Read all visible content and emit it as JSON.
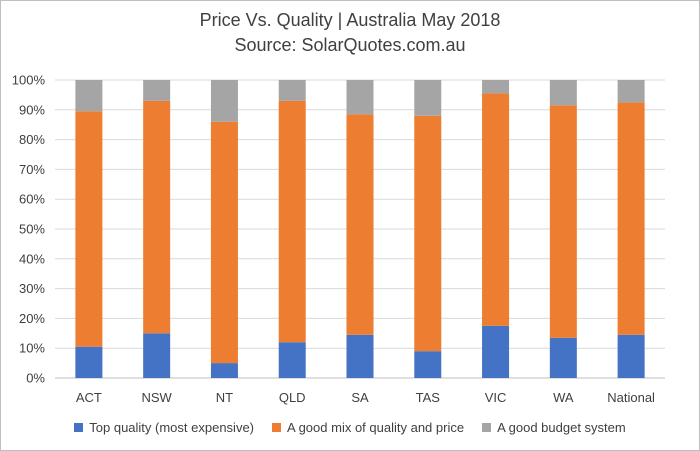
{
  "chart_data": {
    "type": "bar",
    "stacked": true,
    "title": "Price Vs. Quality | Australia May 2018",
    "subtitle": "Source: SolarQuotes.com.au",
    "categories": [
      "ACT",
      "NSW",
      "NT",
      "QLD",
      "SA",
      "TAS",
      "VIC",
      "WA",
      "National"
    ],
    "series": [
      {
        "name": "Top quality (most expensive)",
        "color": "#4472c4",
        "values": [
          10.5,
          15,
          5,
          12,
          14.5,
          9,
          17.5,
          13.5,
          14.5
        ]
      },
      {
        "name": "A good mix of quality and price",
        "color": "#ed7d31",
        "values": [
          79,
          78,
          81,
          81,
          74,
          79,
          78,
          78,
          78
        ]
      },
      {
        "name": "A good budget system",
        "color": "#a5a5a5",
        "values": [
          10.5,
          7,
          14,
          7,
          11.5,
          12,
          4.5,
          8.5,
          7.5
        ]
      }
    ],
    "yticks": [
      "0%",
      "10%",
      "20%",
      "30%",
      "40%",
      "50%",
      "60%",
      "70%",
      "80%",
      "90%",
      "100%"
    ],
    "ylim": [
      0,
      100
    ],
    "grid": true,
    "legend": "bottom"
  }
}
